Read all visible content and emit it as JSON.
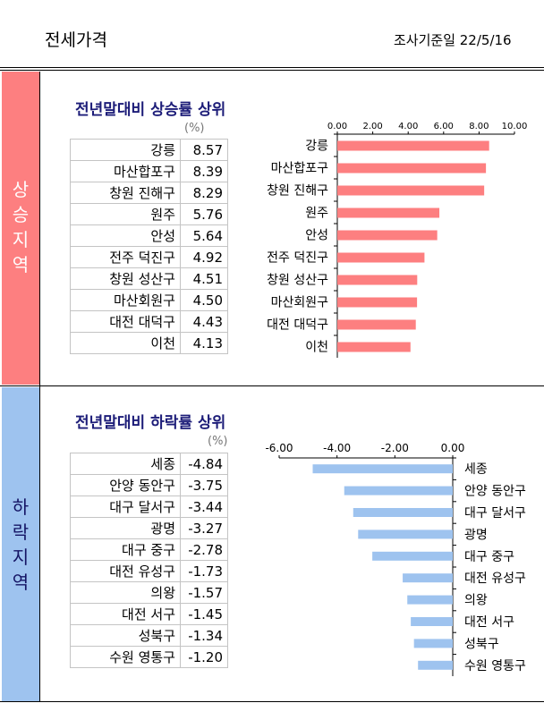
{
  "header": {
    "title": "전세가격",
    "survey_date": "조사기준일  22/5/16"
  },
  "colors": {
    "rise_accent": "#fd7f80",
    "fall_accent": "#9ec3ef",
    "title_navy": "#1c1c78"
  },
  "rise": {
    "side_label": [
      "상",
      "승",
      "지",
      "역"
    ],
    "section_title": "전년말대비 상승률 상위",
    "unit": "(%)",
    "rows": [
      {
        "region": "강릉",
        "value": "8.57"
      },
      {
        "region": "마산합포구",
        "value": "8.39"
      },
      {
        "region": "창원 진해구",
        "value": "8.29"
      },
      {
        "region": "원주",
        "value": "5.76"
      },
      {
        "region": "안성",
        "value": "5.64"
      },
      {
        "region": "전주 덕진구",
        "value": "4.92"
      },
      {
        "region": "창원 성산구",
        "value": "4.51"
      },
      {
        "region": "마산회원구",
        "value": "4.50"
      },
      {
        "region": "대전 대덕구",
        "value": "4.43"
      },
      {
        "region": "이천",
        "value": "4.13"
      }
    ]
  },
  "fall": {
    "side_label": [
      "하",
      "락",
      "지",
      "역"
    ],
    "section_title": "전년말대비 하락률 상위",
    "unit": "(%)",
    "rows": [
      {
        "region": "세종",
        "value": "-4.84"
      },
      {
        "region": "안양 동안구",
        "value": "-3.75"
      },
      {
        "region": "대구 달서구",
        "value": "-3.44"
      },
      {
        "region": "광명",
        "value": "-3.27"
      },
      {
        "region": "대구 중구",
        "value": "-2.78"
      },
      {
        "region": "대전 유성구",
        "value": "-1.73"
      },
      {
        "region": "의왕",
        "value": "-1.57"
      },
      {
        "region": "대전 서구",
        "value": "-1.45"
      },
      {
        "region": "성북구",
        "value": "-1.34"
      },
      {
        "region": "수원 영통구",
        "value": "-1.20"
      }
    ]
  },
  "chart_data": [
    {
      "type": "bar",
      "orientation": "horizontal",
      "categories": [
        "강릉",
        "마산합포구",
        "창원 진해구",
        "원주",
        "안성",
        "전주 덕진구",
        "창원 성산구",
        "마산회원구",
        "대전 대덕구",
        "이천"
      ],
      "values": [
        8.57,
        8.39,
        8.29,
        5.76,
        5.64,
        4.92,
        4.51,
        4.5,
        4.43,
        4.13
      ],
      "xlim": [
        0,
        10
      ],
      "ticks": [
        "0.00",
        "2.00",
        "4.00",
        "6.00",
        "8.00",
        "10.00"
      ],
      "tick_values": [
        0,
        2,
        4,
        6,
        8,
        10
      ],
      "axis_position": "top",
      "color": "#fd7f80",
      "grid": false
    },
    {
      "type": "bar",
      "orientation": "horizontal",
      "categories": [
        "세종",
        "안양 동안구",
        "대구 달서구",
        "광명",
        "대구 중구",
        "대전 유성구",
        "의왕",
        "대전 서구",
        "성북구",
        "수원 영통구"
      ],
      "values": [
        -4.84,
        -3.75,
        -3.44,
        -3.27,
        -2.78,
        -1.73,
        -1.57,
        -1.45,
        -1.34,
        -1.2
      ],
      "xlim": [
        -6,
        0
      ],
      "ticks": [
        "-6.00",
        "-4.00",
        "-2.00",
        "0.00"
      ],
      "tick_values": [
        -6,
        -4,
        -2,
        0
      ],
      "axis_position": "top",
      "color": "#9ec3ef",
      "grid": false
    }
  ]
}
